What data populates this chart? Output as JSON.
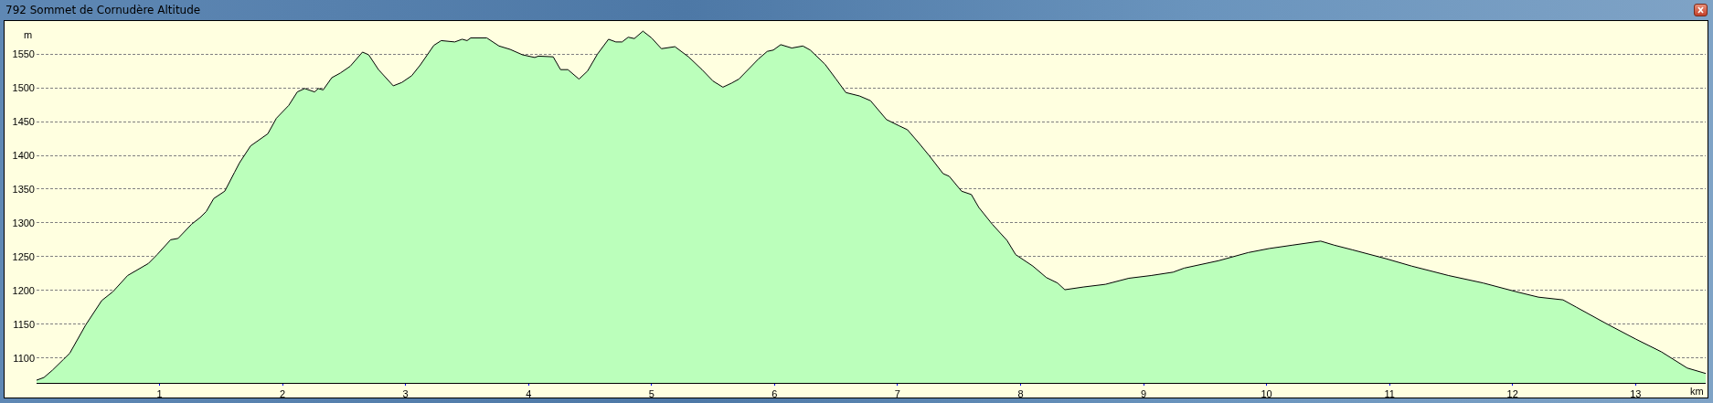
{
  "chart_data": {
    "type": "area",
    "title": "792 Sommet de Cornudère Altitude",
    "xlabel": "km",
    "ylabel": "m",
    "x": [
      0,
      0.06,
      0.13,
      0.22,
      0.27,
      0.4,
      0.53,
      0.62,
      0.74,
      0.91,
      0.98,
      1.09,
      1.15,
      1.26,
      1.33,
      1.38,
      1.44,
      1.53,
      1.61,
      1.65,
      1.74,
      1.88,
      1.95,
      2.05,
      2.12,
      2.18,
      2.26,
      2.29,
      2.33,
      2.4,
      2.47,
      2.55,
      2.65,
      2.7,
      2.78,
      2.9,
      2.97,
      3.05,
      3.12,
      3.23,
      3.29,
      3.4,
      3.46,
      3.5,
      3.53,
      3.66,
      3.76,
      3.85,
      3.95,
      4.05,
      4.08,
      4.2,
      4.26,
      4.32,
      4.41,
      4.48,
      4.56,
      4.65,
      4.71,
      4.76,
      4.81,
      4.86,
      4.93,
      5.0,
      5.08,
      5.19,
      5.3,
      5.41,
      5.5,
      5.58,
      5.65,
      5.71,
      5.87,
      5.94,
      5.99,
      6.05,
      6.14,
      6.23,
      6.29,
      6.41,
      6.5,
      6.58,
      6.69,
      6.78,
      6.91,
      7.01,
      7.08,
      7.17,
      7.26,
      7.37,
      7.42,
      7.52,
      7.6,
      7.66,
      7.77,
      7.89,
      7.96,
      8.1,
      8.21,
      8.3,
      8.36,
      8.51,
      8.69,
      8.88,
      9.06,
      9.24,
      9.33,
      9.61,
      9.85,
      10.02,
      10.21,
      10.44,
      10.55,
      10.7,
      10.97,
      11.18,
      11.48,
      11.76,
      12.03,
      12.21,
      12.41,
      12.52,
      12.76,
      13.0,
      13.21,
      13.42,
      13.57
    ],
    "series": [
      {
        "color": "#bbffbb",
        "values": [
          1067,
          1071,
          1082,
          1098,
          1107,
          1149,
          1185,
          1198,
          1222,
          1240,
          1253,
          1275,
          1277,
          1298,
          1308,
          1317,
          1336,
          1347,
          1375,
          1389,
          1414,
          1432,
          1455,
          1474,
          1494,
          1499,
          1494,
          1499,
          1497,
          1515,
          1522,
          1532,
          1553,
          1549,
          1527,
          1503,
          1508,
          1518,
          1534,
          1563,
          1570,
          1568,
          1572,
          1570,
          1574,
          1574,
          1562,
          1557,
          1549,
          1545,
          1547,
          1546,
          1527,
          1527,
          1513,
          1525,
          1550,
          1572,
          1568,
          1568,
          1575,
          1573,
          1584,
          1574,
          1558,
          1561,
          1546,
          1527,
          1510,
          1501,
          1507,
          1513,
          1543,
          1554,
          1556,
          1564,
          1559,
          1562,
          1556,
          1535,
          1513,
          1493,
          1488,
          1481,
          1453,
          1444,
          1438,
          1419,
          1399,
          1373,
          1369,
          1347,
          1342,
          1323,
          1298,
          1274,
          1253,
          1236,
          1219,
          1211,
          1201,
          1205,
          1209,
          1218,
          1222,
          1227,
          1233,
          1244,
          1256,
          1262,
          1267,
          1273,
          1267,
          1260,
          1247,
          1236,
          1222,
          1211,
          1198,
          1190,
          1186,
          1175,
          1151,
          1128,
          1109,
          1085,
          1077
        ]
      }
    ],
    "xlim": [
      0,
      13.57
    ],
    "ylim": [
      1063,
      1599
    ],
    "xticks": [
      1,
      2,
      3,
      4,
      5,
      6,
      7,
      8,
      9,
      10,
      11,
      12,
      13
    ],
    "yticks": [
      1100,
      1150,
      1200,
      1250,
      1300,
      1350,
      1400,
      1450,
      1500,
      1550
    ],
    "grid": "y"
  }
}
